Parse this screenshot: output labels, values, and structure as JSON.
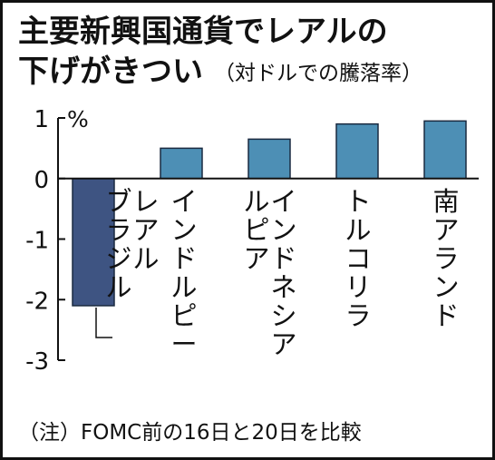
{
  "title_line1": "主要新興国通貨でレアルの",
  "title_line2": "下げがきつい",
  "subtitle": "（対ドルでの騰落率）",
  "unit": "%",
  "note": "（注）FOMC前の16日と20日を比較",
  "colors": {
    "bar_highlight": "#3e5482",
    "bar_default": "#4d8fb5",
    "axis": "#111111"
  },
  "chart_data": {
    "type": "bar",
    "title": "主要新興国通貨でレアルの下げがきつい",
    "subtitle": "（対ドルでの騰落率）",
    "ylabel": "%",
    "ylim": [
      -3,
      1
    ],
    "yticks": [
      "1",
      "0",
      "-1",
      "-2",
      "-3"
    ],
    "categories": [
      "ブラジルレアル",
      "インドルピー",
      "インドネシアルピア",
      "トルコリラ",
      "南アランド"
    ],
    "category_lines": [
      [
        "ブラジル",
        "レアル"
      ],
      [
        "インドルピー"
      ],
      [
        "インドネシア",
        "ルピア"
      ],
      [
        "トルコリラ"
      ],
      [
        "南アランド"
      ]
    ],
    "values": [
      -2.1,
      0.5,
      0.65,
      0.9,
      0.95
    ],
    "highlight": [
      true,
      false,
      false,
      false,
      false
    ],
    "grid": false,
    "legend": "none"
  }
}
